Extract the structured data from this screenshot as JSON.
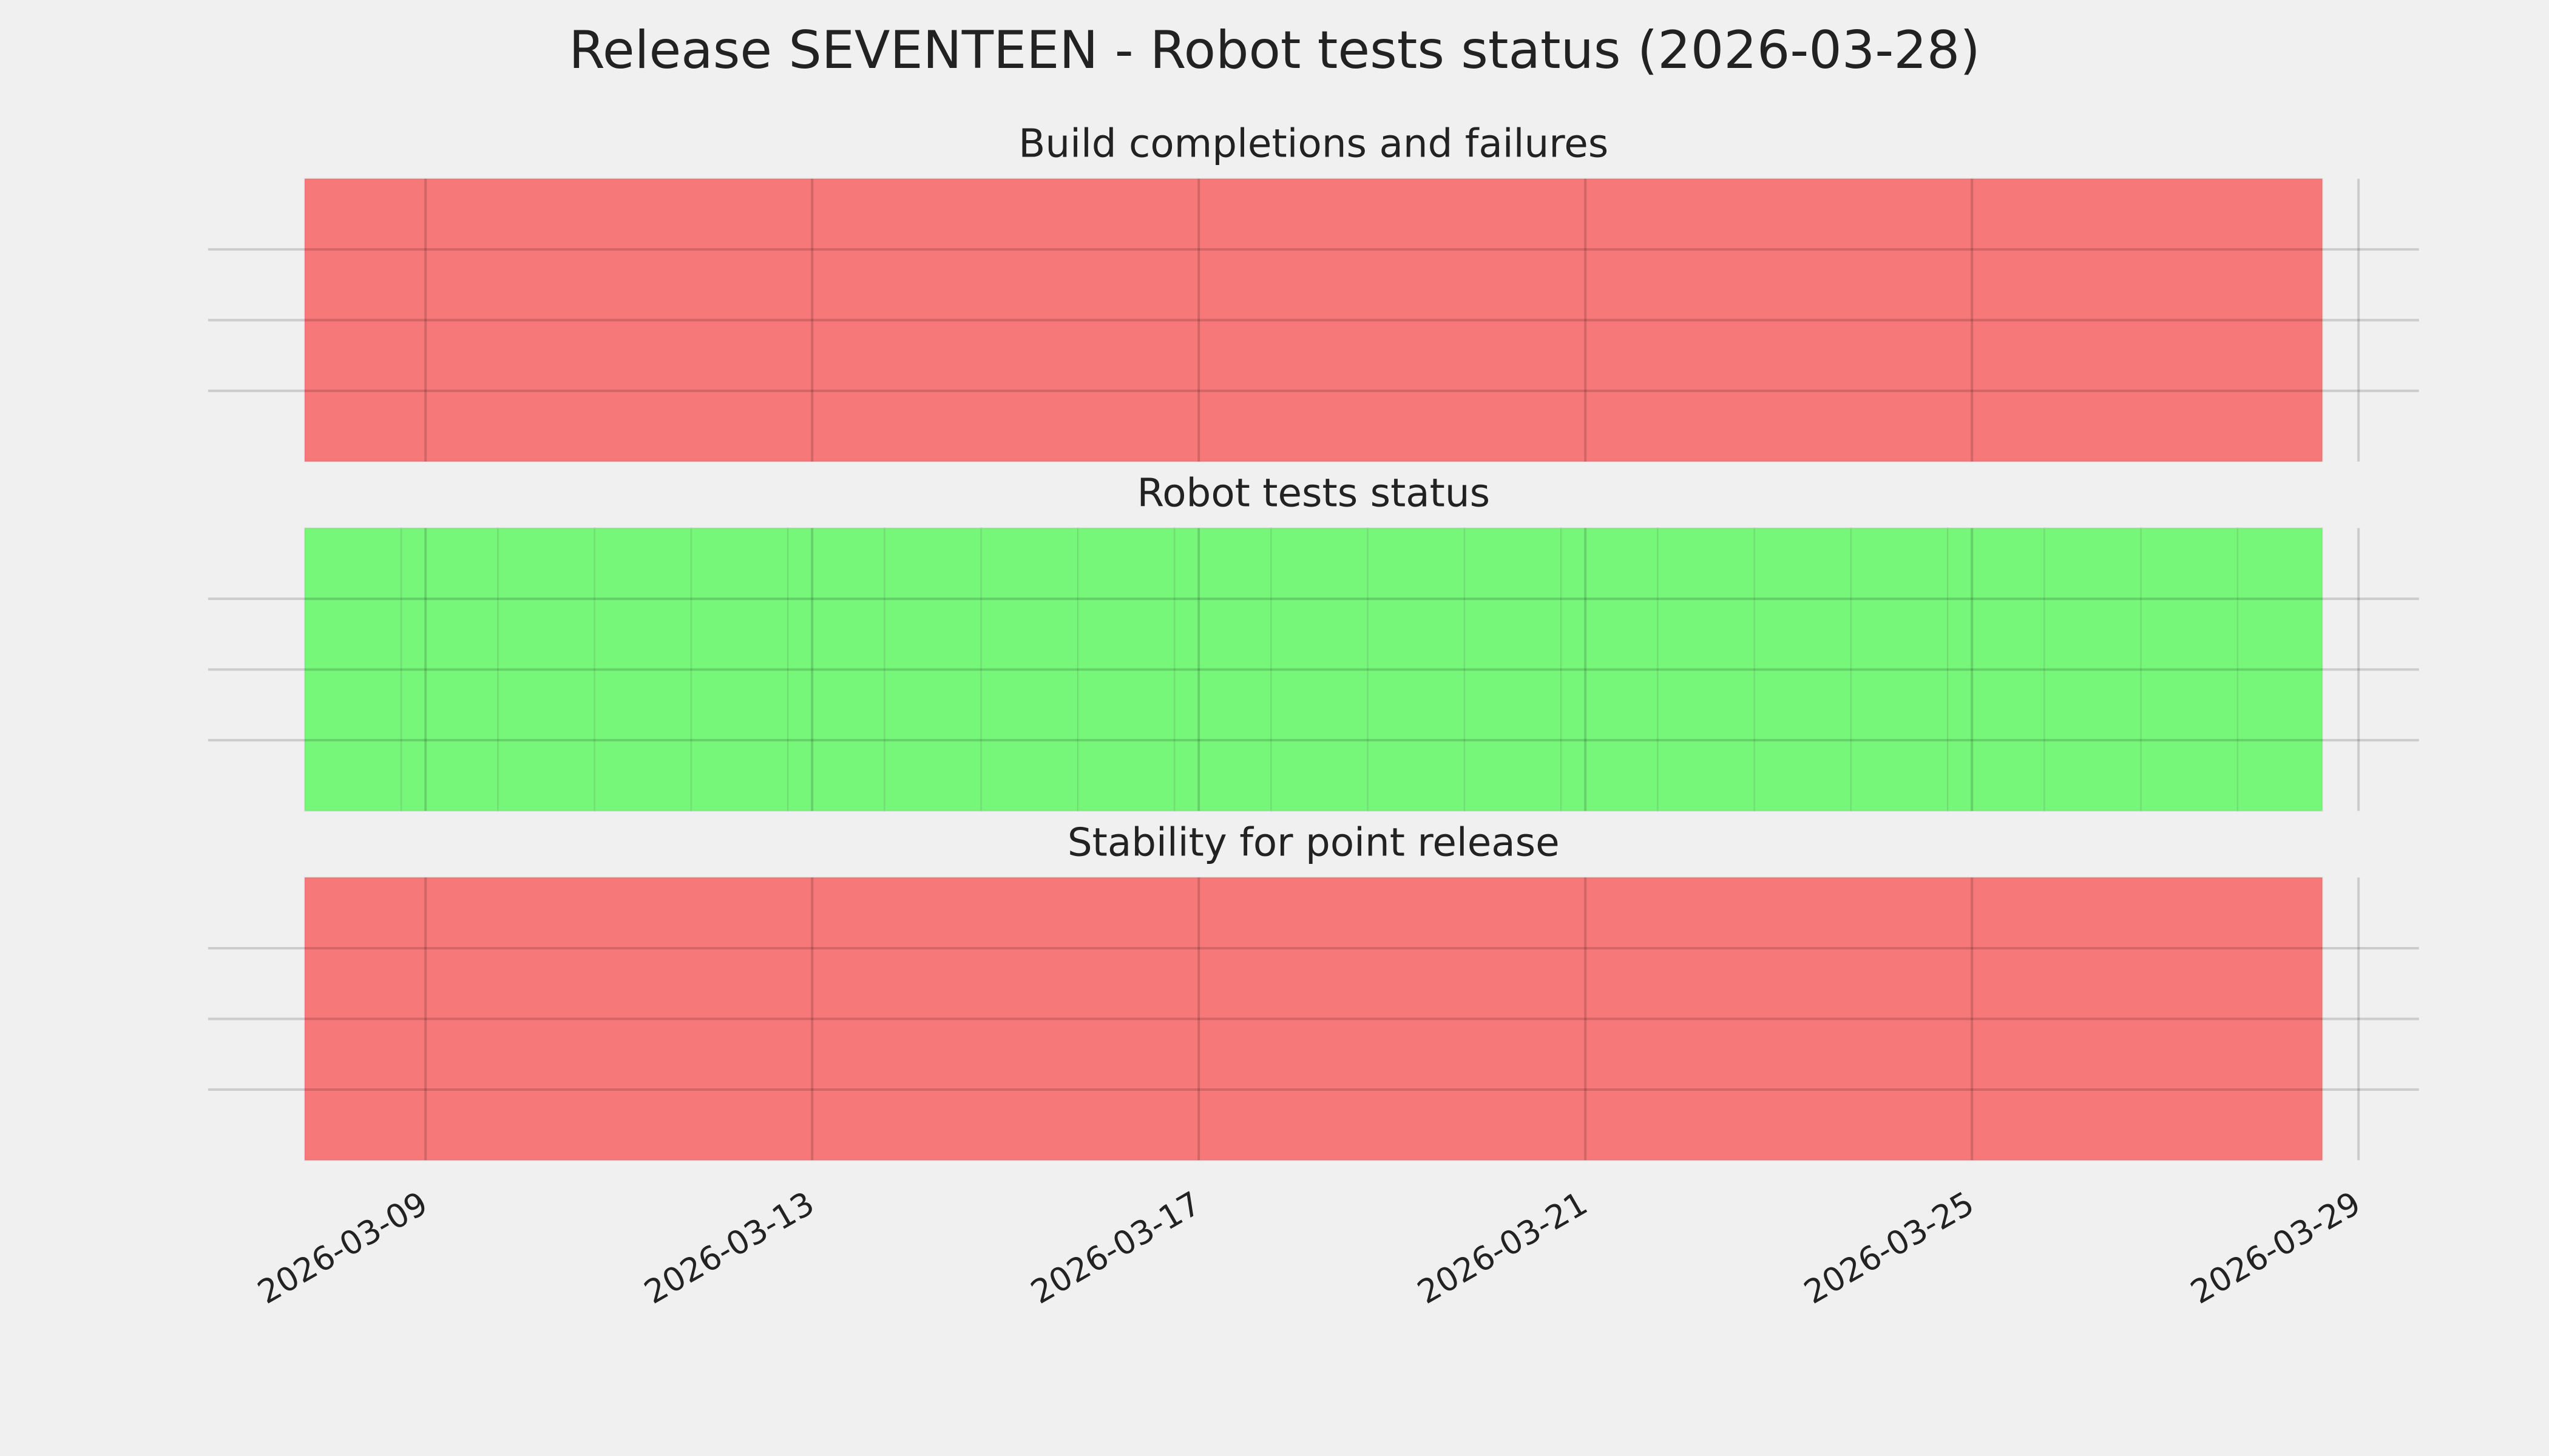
{
  "title": "Release SEVENTEEN - Robot tests status (2026-03-28)",
  "sharex": true,
  "chart_data": [
    {
      "type": "span",
      "title": "Build completions and failures",
      "color": "#f77878",
      "spans": [
        {
          "start": "2026-03-07T18:00",
          "end": "2026-03-28T15:00"
        }
      ],
      "xlim": [
        "2026-03-06T18:00",
        "2026-03-29T15:00"
      ],
      "ylim": [
        0,
        1
      ],
      "yticks": [
        0.25,
        0.5,
        0.75
      ],
      "grid": true
    },
    {
      "type": "span",
      "title": "Robot tests status",
      "color": "#77f77a",
      "spans": [
        {
          "start": "2026-03-07T18:00",
          "end": "2026-03-08T18:00"
        },
        {
          "start": "2026-03-08T18:00",
          "end": "2026-03-09T18:00"
        },
        {
          "start": "2026-03-09T18:00",
          "end": "2026-03-10T18:00"
        },
        {
          "start": "2026-03-10T18:00",
          "end": "2026-03-11T18:00"
        },
        {
          "start": "2026-03-11T18:00",
          "end": "2026-03-12T18:00"
        },
        {
          "start": "2026-03-12T18:00",
          "end": "2026-03-13T18:00"
        },
        {
          "start": "2026-03-13T18:00",
          "end": "2026-03-14T18:00"
        },
        {
          "start": "2026-03-14T18:00",
          "end": "2026-03-15T18:00"
        },
        {
          "start": "2026-03-15T18:00",
          "end": "2026-03-16T18:00"
        },
        {
          "start": "2026-03-16T18:00",
          "end": "2026-03-17T18:00"
        },
        {
          "start": "2026-03-17T18:00",
          "end": "2026-03-18T18:00"
        },
        {
          "start": "2026-03-18T18:00",
          "end": "2026-03-19T18:00"
        },
        {
          "start": "2026-03-19T18:00",
          "end": "2026-03-20T18:00"
        },
        {
          "start": "2026-03-20T18:00",
          "end": "2026-03-21T18:00"
        },
        {
          "start": "2026-03-21T18:00",
          "end": "2026-03-22T18:00"
        },
        {
          "start": "2026-03-22T18:00",
          "end": "2026-03-23T18:00"
        },
        {
          "start": "2026-03-23T18:00",
          "end": "2026-03-24T18:00"
        },
        {
          "start": "2026-03-24T18:00",
          "end": "2026-03-25T18:00"
        },
        {
          "start": "2026-03-25T18:00",
          "end": "2026-03-26T18:00"
        },
        {
          "start": "2026-03-26T18:00",
          "end": "2026-03-27T18:00"
        },
        {
          "start": "2026-03-27T18:00",
          "end": "2026-03-28T15:00"
        }
      ],
      "xlim": [
        "2026-03-06T18:00",
        "2026-03-29T15:00"
      ],
      "ylim": [
        0,
        1
      ],
      "yticks": [
        0.25,
        0.5,
        0.75
      ],
      "grid": true
    },
    {
      "type": "span",
      "title": "Stability for point release",
      "color": "#f77878",
      "spans": [
        {
          "start": "2026-03-07T18:00",
          "end": "2026-03-28T15:00"
        }
      ],
      "xlim": [
        "2026-03-06T18:00",
        "2026-03-29T15:00"
      ],
      "ylim": [
        0,
        1
      ],
      "yticks": [
        0.25,
        0.5,
        0.75
      ],
      "grid": true,
      "xticks": [
        "2026-03-09",
        "2026-03-13",
        "2026-03-17",
        "2026-03-21",
        "2026-03-25",
        "2026-03-29"
      ]
    }
  ]
}
